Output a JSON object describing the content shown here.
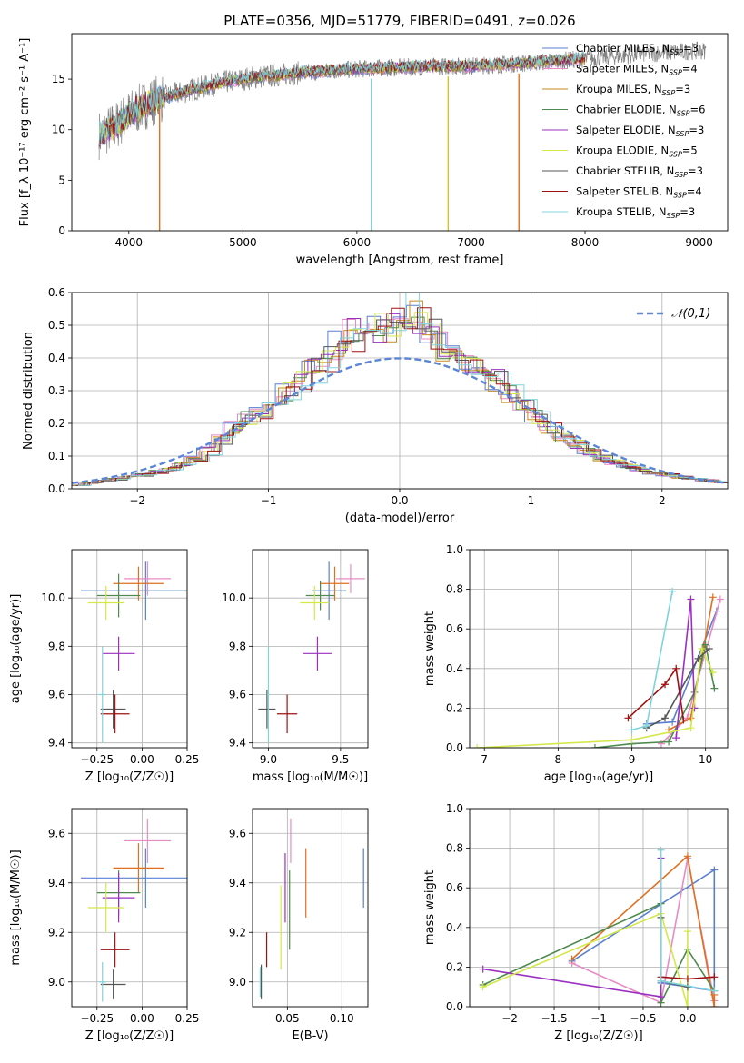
{
  "figure": {
    "title": "PLATE=0356, MJD=51779, FIBERID=0491, z=0.026"
  },
  "chart_data": [
    {
      "id": "spectrum",
      "type": "line",
      "xlabel": "wavelength [Angstrom, rest frame]",
      "ylabel": "Flux [f_λ 10⁻¹⁷ erg cm⁻² s⁻¹ A⁻¹]",
      "xlim": [
        3500,
        9250
      ],
      "ylim": [
        0,
        19.5
      ],
      "xticks": [
        4000,
        5000,
        6000,
        7000,
        8000,
        9000
      ],
      "yticks": [
        0,
        5,
        10,
        15
      ],
      "legend_position": "upper-right",
      "grid": false,
      "legend": [
        {
          "label": "Chabrier MILES, N_SSP=3",
          "base": "Chabrier MILES, N",
          "sub": "SSP",
          "tail": "=3",
          "color": "#5b7fd0"
        },
        {
          "label": "Salpeter MILES, N_SSP=4",
          "base": "Salpeter MILES, N",
          "sub": "SSP",
          "tail": "=4",
          "color": "#e88bc4"
        },
        {
          "label": "Kroupa MILES, N_SSP=3",
          "base": "Kroupa MILES, N",
          "sub": "SSP",
          "tail": "=3",
          "color": "#c98a1b"
        },
        {
          "label": "Chabrier ELODIE, N_SSP=6",
          "base": "Chabrier ELODIE, N",
          "sub": "SSP",
          "tail": "=6",
          "color": "#4f8a4f"
        },
        {
          "label": "Salpeter ELODIE, N_SSP=3",
          "base": "Salpeter ELODIE, N",
          "sub": "SSP",
          "tail": "=3",
          "color": "#9b30c0"
        },
        {
          "label": "Kroupa ELODIE, N_SSP=5",
          "base": "Kroupa ELODIE, N",
          "sub": "SSP",
          "tail": "=5",
          "color": "#d4e84a"
        },
        {
          "label": "Chabrier STELIB, N_SSP=3",
          "base": "Chabrier STELIB, N",
          "sub": "SSP",
          "tail": "=3",
          "color": "#555555"
        },
        {
          "label": "Salpeter STELIB, N_SSP=4",
          "base": "Salpeter STELIB, N",
          "sub": "SSP",
          "tail": "=4",
          "color": "#a01010"
        },
        {
          "label": "Kroupa STELIB, N_SSP=3",
          "base": "Kroupa STELIB, N",
          "sub": "SSP",
          "tail": "=3",
          "color": "#7fd4dc"
        }
      ],
      "continuum": {
        "x": [
          3750,
          3900,
          4000,
          4200,
          4500,
          4800,
          5000,
          5200,
          5500,
          6000,
          6500,
          7000,
          7500,
          8000,
          8500,
          9000
        ],
        "y": [
          9.5,
          10.5,
          11.5,
          12.8,
          13.8,
          14.6,
          15.0,
          15.3,
          15.6,
          16.0,
          16.2,
          16.3,
          16.6,
          17.0,
          17.5,
          17.8
        ]
      },
      "data_x_range": [
        3740,
        9060
      ],
      "model_x_range": [
        3740,
        8000
      ],
      "spikes": [
        {
          "x": 4270,
          "color": "#e07020"
        },
        {
          "x": 6125,
          "color": "#7fd4dc"
        },
        {
          "x": 6800,
          "color": "#d4c02a"
        },
        {
          "x": 7420,
          "color": "#e07020"
        }
      ]
    },
    {
      "id": "residual-histogram",
      "type": "step",
      "xlabel": "(data-model)/error",
      "ylabel": "Normed distribution",
      "xlim": [
        -2.5,
        2.5
      ],
      "ylim": [
        0,
        0.6
      ],
      "xticks": [
        -2,
        -1,
        0,
        1,
        2
      ],
      "yticks": [
        0.0,
        0.1,
        0.2,
        0.3,
        0.4,
        0.5,
        0.6
      ],
      "grid": true,
      "bin_width": 0.1,
      "bin_centers": [
        -2.45,
        -2.35,
        -2.25,
        -2.15,
        -2.05,
        -1.95,
        -1.85,
        -1.75,
        -1.65,
        -1.55,
        -1.45,
        -1.35,
        -1.25,
        -1.15,
        -1.05,
        -0.95,
        -0.85,
        -0.75,
        -0.65,
        -0.55,
        -0.45,
        -0.35,
        -0.25,
        -0.15,
        -0.05,
        0.05,
        0.15,
        0.25,
        0.35,
        0.45,
        0.55,
        0.65,
        0.75,
        0.85,
        0.95,
        1.05,
        1.15,
        1.25,
        1.35,
        1.45,
        1.55,
        1.65,
        1.75,
        1.85,
        1.95,
        2.05,
        2.15,
        2.25,
        2.35,
        2.45
      ],
      "histogram_envelope": [
        0.012,
        0.018,
        0.024,
        0.03,
        0.036,
        0.042,
        0.052,
        0.06,
        0.075,
        0.09,
        0.115,
        0.15,
        0.19,
        0.22,
        0.24,
        0.26,
        0.3,
        0.33,
        0.36,
        0.4,
        0.44,
        0.47,
        0.5,
        0.49,
        0.505,
        0.545,
        0.52,
        0.47,
        0.435,
        0.415,
        0.39,
        0.36,
        0.33,
        0.29,
        0.25,
        0.22,
        0.185,
        0.16,
        0.135,
        0.112,
        0.095,
        0.08,
        0.068,
        0.058,
        0.048,
        0.042,
        0.036,
        0.03,
        0.025,
        0.02
      ],
      "reference": {
        "label": "𝒩(0,1)",
        "color": "#5b86d6"
      }
    },
    {
      "id": "age-vs-Z",
      "type": "errorbar",
      "xlabel": "Z [log₁₀(Z/Z☉)]",
      "ylabel": "age [log₁₀(age/yr)]",
      "xlim": [
        -0.39,
        0.25
      ],
      "ylim": [
        9.38,
        10.2
      ],
      "xticks": [
        -0.25,
        0.0,
        0.25
      ],
      "yticks": [
        9.4,
        9.6,
        9.8,
        10.0
      ],
      "grid": true,
      "points": [
        {
          "x": 0.02,
          "y": 10.03,
          "xerr": 0.36,
          "yerr": 0.12,
          "color": "#5b7fd0"
        },
        {
          "x": 0.03,
          "y": 10.08,
          "xerr": 0.13,
          "yerr": 0.07,
          "color": "#e88bc4"
        },
        {
          "x": -0.02,
          "y": 10.06,
          "xerr": 0.14,
          "yerr": 0.07,
          "color": "#e07020"
        },
        {
          "x": -0.13,
          "y": 10.01,
          "xerr": 0.12,
          "yerr": 0.09,
          "color": "#4f8a4f"
        },
        {
          "x": -0.13,
          "y": 9.77,
          "xerr": 0.09,
          "yerr": 0.07,
          "color": "#9b30c0"
        },
        {
          "x": -0.2,
          "y": 9.98,
          "xerr": 0.1,
          "yerr": 0.07,
          "color": "#d4e84a"
        },
        {
          "x": -0.16,
          "y": 9.54,
          "xerr": 0.07,
          "yerr": 0.08,
          "color": "#555555"
        },
        {
          "x": -0.15,
          "y": 9.52,
          "xerr": 0.08,
          "yerr": 0.08,
          "color": "#a01010"
        },
        {
          "x": -0.22,
          "y": 9.6,
          "xerr": 0.02,
          "yerr": 0.2,
          "color": "#7fd4dc"
        }
      ]
    },
    {
      "id": "age-vs-mass",
      "type": "errorbar",
      "xlabel": "mass [log₁₀(M/M☉)]",
      "ylabel": "",
      "xlim": [
        8.89,
        9.69
      ],
      "ylim": [
        9.38,
        10.2
      ],
      "xticks": [
        9.0,
        9.5
      ],
      "yticks": [
        9.4,
        9.6,
        9.8,
        10.0
      ],
      "grid": true,
      "points": [
        {
          "x": 9.42,
          "y": 10.03,
          "xerr": 0.12,
          "yerr": 0.12,
          "color": "#5b7fd0"
        },
        {
          "x": 9.57,
          "y": 10.08,
          "xerr": 0.1,
          "yerr": 0.06,
          "color": "#e88bc4"
        },
        {
          "x": 9.46,
          "y": 10.06,
          "xerr": 0.1,
          "yerr": 0.07,
          "color": "#e07020"
        },
        {
          "x": 9.36,
          "y": 10.01,
          "xerr": 0.1,
          "yerr": 0.06,
          "color": "#4f8a4f"
        },
        {
          "x": 9.34,
          "y": 9.77,
          "xerr": 0.1,
          "yerr": 0.07,
          "color": "#9b30c0"
        },
        {
          "x": 9.32,
          "y": 9.98,
          "xerr": 0.1,
          "yerr": 0.07,
          "color": "#d4e84a"
        },
        {
          "x": 8.99,
          "y": 9.54,
          "xerr": 0.06,
          "yerr": 0.08,
          "color": "#555555"
        },
        {
          "x": 9.13,
          "y": 9.52,
          "xerr": 0.07,
          "yerr": 0.08,
          "color": "#a01010"
        },
        {
          "x": 9.0,
          "y": 9.6,
          "xerr": 0.01,
          "yerr": 0.2,
          "color": "#7fd4dc"
        }
      ]
    },
    {
      "id": "mass-weight-vs-age",
      "type": "line",
      "xlabel": "age  [log₁₀(age/yr)]",
      "ylabel": "mass weight",
      "xlim": [
        6.8,
        10.3
      ],
      "ylim": [
        0,
        1.0
      ],
      "xticks": [
        7,
        8,
        9,
        10
      ],
      "yticks": [
        0.0,
        0.2,
        0.4,
        0.6,
        0.8,
        1.0
      ],
      "grid": true,
      "series": [
        {
          "color": "#5b7fd0",
          "x": [
            9.2,
            9.55,
            10.15
          ],
          "y": [
            0.12,
            0.13,
            0.69
          ]
        },
        {
          "color": "#e88bc4",
          "x": [
            9.4,
            9.75,
            10.2
          ],
          "y": [
            0.02,
            0.15,
            0.75
          ]
        },
        {
          "color": "#e07020",
          "x": [
            9.5,
            9.8,
            10.1
          ],
          "y": [
            0.09,
            0.15,
            0.76
          ]
        },
        {
          "color": "#4f8a4f",
          "x": [
            8.5,
            9.0,
            9.5,
            9.85,
            10.0,
            10.12
          ],
          "y": [
            0.0,
            0.02,
            0.03,
            0.28,
            0.52,
            0.3
          ]
        },
        {
          "color": "#9b30c0",
          "x": [
            9.6,
            9.8,
            9.85
          ],
          "y": [
            0.05,
            0.75,
            0.2
          ]
        },
        {
          "color": "#d4e84a",
          "x": [
            6.9,
            9.0,
            9.8,
            9.95,
            10.1
          ],
          "y": [
            0.0,
            0.04,
            0.1,
            0.5,
            0.38
          ]
        },
        {
          "color": "#555555",
          "x": [
            9.2,
            9.45,
            9.9,
            10.05
          ],
          "y": [
            0.1,
            0.15,
            0.45,
            0.5
          ]
        },
        {
          "color": "#a01010",
          "x": [
            8.95,
            9.45,
            9.6,
            9.7
          ],
          "y": [
            0.15,
            0.32,
            0.4,
            0.14
          ]
        },
        {
          "color": "#7fd4dc",
          "x": [
            9.0,
            9.2,
            9.55
          ],
          "y": [
            0.09,
            0.11,
            0.79
          ]
        }
      ]
    },
    {
      "id": "mass-vs-Z",
      "type": "errorbar",
      "xlabel": "Z [log₁₀(Z/Z☉)]",
      "ylabel": "mass [log₁₀(M/M☉)]",
      "xlim": [
        -0.39,
        0.25
      ],
      "ylim": [
        8.9,
        9.7
      ],
      "xticks": [
        -0.25,
        0.0,
        0.25
      ],
      "yticks": [
        9.0,
        9.2,
        9.4,
        9.6
      ],
      "grid": true,
      "points": [
        {
          "x": 0.02,
          "y": 9.42,
          "xerr": 0.36,
          "yerr": 0.12,
          "color": "#5b7fd0"
        },
        {
          "x": 0.03,
          "y": 9.57,
          "xerr": 0.13,
          "yerr": 0.09,
          "color": "#e88bc4"
        },
        {
          "x": -0.02,
          "y": 9.46,
          "xerr": 0.14,
          "yerr": 0.1,
          "color": "#e07020"
        },
        {
          "x": -0.13,
          "y": 9.36,
          "xerr": 0.12,
          "yerr": 0.09,
          "color": "#4f8a4f"
        },
        {
          "x": -0.13,
          "y": 9.34,
          "xerr": 0.09,
          "yerr": 0.1,
          "color": "#9b30c0"
        },
        {
          "x": -0.2,
          "y": 9.3,
          "xerr": 0.1,
          "yerr": 0.1,
          "color": "#d4e84a"
        },
        {
          "x": -0.16,
          "y": 8.99,
          "xerr": 0.07,
          "yerr": 0.06,
          "color": "#555555"
        },
        {
          "x": -0.15,
          "y": 9.13,
          "xerr": 0.08,
          "yerr": 0.07,
          "color": "#a01010"
        },
        {
          "x": -0.22,
          "y": 9.0,
          "xerr": 0.02,
          "yerr": 0.08,
          "color": "#7fd4dc"
        }
      ]
    },
    {
      "id": "mass-vs-EBV",
      "type": "errorbar",
      "xlabel": "E(B-V)",
      "ylabel": "",
      "xlim": [
        0.018,
        0.124
      ],
      "ylim": [
        8.9,
        9.7
      ],
      "xticks": [
        0.05,
        0.1
      ],
      "yticks": [
        9.0,
        9.2,
        9.4,
        9.6
      ],
      "grid": true,
      "points": [
        {
          "x": 0.12,
          "y": 9.42,
          "xerr": 0,
          "yerr": 0.12,
          "color": "#5b7fd0"
        },
        {
          "x": 0.053,
          "y": 9.57,
          "xerr": 0,
          "yerr": 0.09,
          "color": "#e88bc4"
        },
        {
          "x": 0.067,
          "y": 9.4,
          "xerr": 0,
          "yerr": 0.14,
          "color": "#e07020"
        },
        {
          "x": 0.052,
          "y": 9.29,
          "xerr": 0,
          "yerr": 0.16,
          "color": "#4f8a4f"
        },
        {
          "x": 0.048,
          "y": 9.38,
          "xerr": 0,
          "yerr": 0.14,
          "color": "#9b30c0"
        },
        {
          "x": 0.044,
          "y": 9.22,
          "xerr": 0,
          "yerr": 0.17,
          "color": "#d4e84a"
        },
        {
          "x": 0.026,
          "y": 9.0,
          "xerr": 0,
          "yerr": 0.07,
          "color": "#555555"
        },
        {
          "x": 0.031,
          "y": 9.13,
          "xerr": 0,
          "yerr": 0.07,
          "color": "#a01010"
        },
        {
          "x": 0.025,
          "y": 9.0,
          "xerr": 0,
          "yerr": 0.06,
          "color": "#7fd4dc"
        }
      ]
    },
    {
      "id": "mass-weight-vs-Z",
      "type": "line",
      "xlabel": "Z [log₁₀(Z/Z☉)]",
      "ylabel": "mass weight",
      "xlim": [
        -2.45,
        0.45
      ],
      "ylim": [
        0,
        1.0
      ],
      "xticks": [
        -2.0,
        -1.5,
        -1.0,
        -0.5,
        0.0
      ],
      "yticks": [
        0.0,
        0.2,
        0.4,
        0.6,
        0.8,
        1.0
      ],
      "grid": true,
      "series": [
        {
          "color": "#5b7fd0",
          "x": [
            -1.3,
            0.3,
            0.3,
            -0.3
          ],
          "y": [
            0.23,
            0.69,
            0.08,
            0.12
          ]
        },
        {
          "color": "#e88bc4",
          "x": [
            -1.3,
            -0.3,
            0.0,
            0.3
          ],
          "y": [
            0.22,
            0.02,
            0.75,
            0.03
          ]
        },
        {
          "color": "#e07020",
          "x": [
            -1.3,
            0.0,
            0.3,
            0.3
          ],
          "y": [
            0.24,
            0.76,
            0.0,
            0.06
          ]
        },
        {
          "color": "#4f8a4f",
          "x": [
            -2.3,
            -0.3,
            -0.3,
            0.0,
            0.3
          ],
          "y": [
            0.11,
            0.52,
            0.02,
            0.29,
            0.08
          ]
        },
        {
          "color": "#9b30c0",
          "x": [
            -2.3,
            -0.3,
            -0.3
          ],
          "y": [
            0.19,
            0.05,
            0.75
          ]
        },
        {
          "color": "#d4e84a",
          "x": [
            -2.3,
            -0.3,
            0.0,
            0.0
          ],
          "y": [
            0.1,
            0.47,
            0.0,
            0.38
          ]
        },
        {
          "color": "#555555",
          "x": [
            -0.3,
            -0.3,
            0.0
          ],
          "y": [
            0.45,
            0.13,
            0.1
          ]
        },
        {
          "color": "#a01010",
          "x": [
            -0.3,
            0.0,
            0.3
          ],
          "y": [
            0.15,
            0.14,
            0.15
          ]
        },
        {
          "color": "#7fd4dc",
          "x": [
            -0.3,
            -0.3,
            0.3
          ],
          "y": [
            0.79,
            0.13,
            0.08
          ]
        }
      ]
    }
  ]
}
